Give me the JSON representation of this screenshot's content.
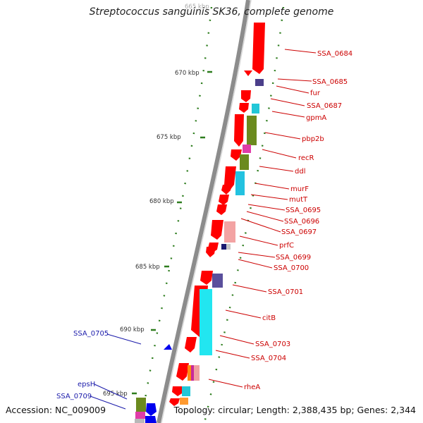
{
  "title": "Streptococcus sanguinis SK36, complete genome",
  "accession": "Accession: NC_009009",
  "summary": "Topology: circular; Length: 2,388,435 bp; Genes: 2,344",
  "colors": {
    "backbone": "#8a8a8a",
    "gene_label": "#cc0000",
    "highlight_label": "#1a1aaa",
    "tick": "#2e7d1e",
    "forward_gene": "#ff0000",
    "reverse_gene": "#0000ff"
  },
  "ticks": [
    "665 kbp",
    "670 kbp",
    "675 kbp",
    "680 kbp",
    "685 kbp",
    "690 kbp",
    "695 kbp"
  ],
  "genes_right": [
    {
      "label": "SSA_0684"
    },
    {
      "label": "SSA_0685"
    },
    {
      "label": "fur"
    },
    {
      "label": "SSA_0687"
    },
    {
      "label": "gpmA"
    },
    {
      "label": "pbp2b"
    },
    {
      "label": "recR"
    },
    {
      "label": "ddl"
    },
    {
      "label": "murF"
    },
    {
      "label": "mutT"
    },
    {
      "label": "SSA_0695"
    },
    {
      "label": "SSA_0696"
    },
    {
      "label": "SSA_0697"
    },
    {
      "label": "prfC"
    },
    {
      "label": "SSA_0699"
    },
    {
      "label": "SSA_0700"
    },
    {
      "label": "SSA_0701"
    },
    {
      "label": "citB"
    },
    {
      "label": "SSA_0703"
    },
    {
      "label": "SSA_0704"
    },
    {
      "label": "rheA"
    }
  ],
  "genes_left": [
    {
      "label": "SSA_0705"
    },
    {
      "label": "epsH"
    },
    {
      "label": "SSA_0709"
    }
  ]
}
